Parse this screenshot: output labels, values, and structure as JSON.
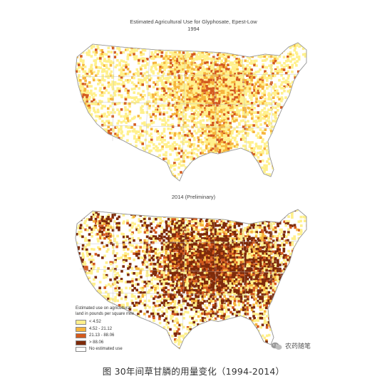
{
  "map_1994": {
    "title": "Estimated Agricultural Use for Glyphosate, Epest-Low",
    "year": "1994"
  },
  "map_2014": {
    "year": "2014 (Preliminary)"
  },
  "legend": {
    "title": "Estimated use on agricultural land in pounds per square mile",
    "items": [
      {
        "label": "< 4.52",
        "color": "#fff08c"
      },
      {
        "label": "4.52 - 21.12",
        "color": "#f6b43c"
      },
      {
        "label": "21.13 - 88.06",
        "color": "#d45a1e"
      },
      {
        "label": "> 88.06",
        "color": "#7e2a0a"
      },
      {
        "label": "No estimated use",
        "color": "#ffffff"
      }
    ]
  },
  "watermark": "农药随笔",
  "caption": "图 30年间草甘膦的用量变化（1994-2014）"
}
